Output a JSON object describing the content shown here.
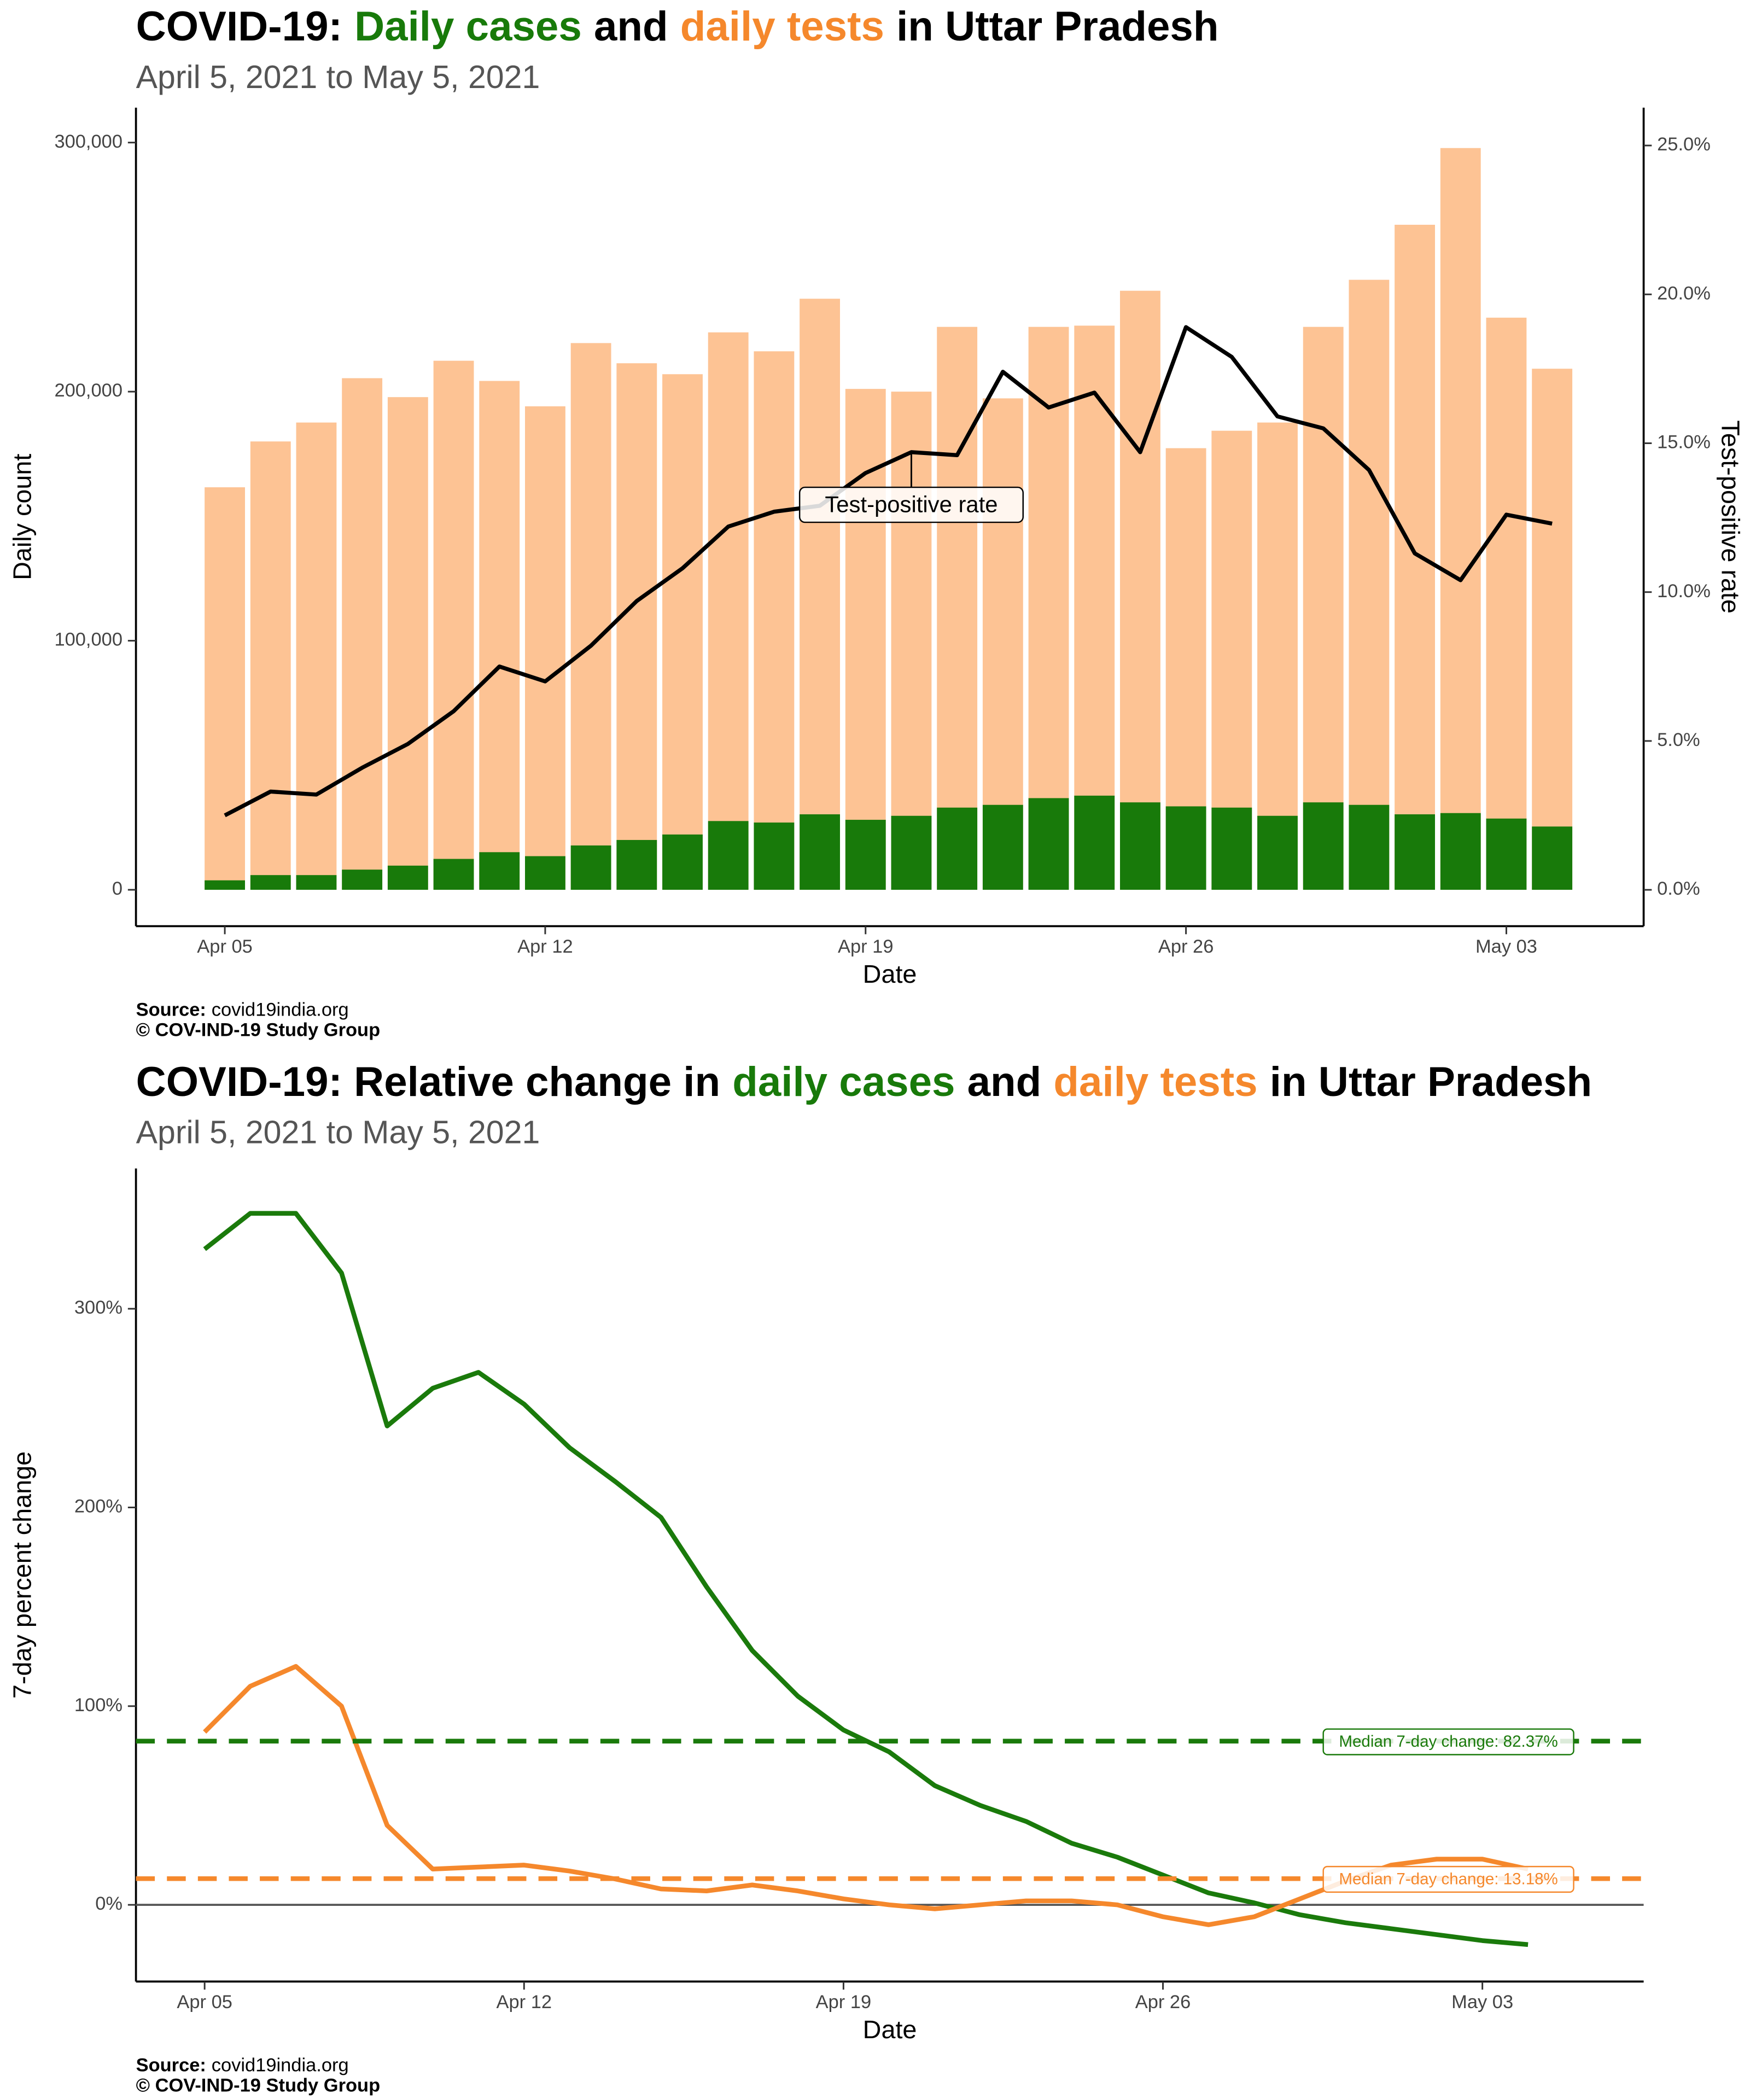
{
  "chart_data": [
    {
      "type": "bar",
      "title": [
        "COVID-19:",
        "Daily cases",
        "and",
        "daily tests",
        "in Uttar Pradesh"
      ],
      "title_colors": [
        "#000000",
        "#187a0a",
        "#000000",
        "#f5882c",
        "#000000"
      ],
      "subtitle": "April  5, 2021 to May  5, 2021",
      "x_label": "Date",
      "y_label": "Daily count",
      "y2_label": "Test-positive rate",
      "annotation": "Test-positive rate",
      "source_label": "Source:",
      "source": "covid19india.org",
      "copyright": "© COV-IND-19 Study Group",
      "categories": [
        "Apr 05",
        null,
        null,
        null,
        null,
        null,
        null,
        "Apr 12",
        null,
        null,
        null,
        null,
        null,
        null,
        "Apr 19",
        null,
        null,
        null,
        null,
        null,
        null,
        "Apr 26",
        null,
        null,
        null,
        null,
        null,
        null,
        "May 03",
        null
      ],
      "series": [
        {
          "name": "daily tests",
          "type": "bar",
          "color": "#fdc394",
          "values": [
            161600,
            180000,
            187600,
            205400,
            197800,
            212400,
            204300,
            194100,
            219500,
            211400,
            207000,
            223800,
            216200,
            237300,
            201100,
            200000,
            226000,
            197300,
            226000,
            226500,
            240500,
            177300,
            184300,
            187600,
            226000,
            244900,
            267000,
            297800,
            229700,
            209200
          ]
        },
        {
          "name": "Daily cases",
          "type": "bar",
          "color": "#187a0a",
          "values": [
            3800,
            5900,
            5900,
            8100,
            9700,
            12400,
            15100,
            13500,
            17800,
            20000,
            22200,
            27600,
            27000,
            30300,
            28100,
            29700,
            33000,
            34100,
            36800,
            37800,
            35100,
            33500,
            33000,
            29700,
            35100,
            34100,
            30300,
            30800,
            28600,
            25400
          ]
        },
        {
          "name": "Test-positive rate",
          "type": "line",
          "axis": "y2",
          "color": "#000000",
          "values": [
            2.5,
            3.3,
            3.2,
            4.1,
            4.9,
            6.0,
            7.5,
            7.0,
            8.2,
            9.7,
            10.8,
            12.2,
            12.7,
            12.9,
            14.0,
            14.7,
            14.6,
            17.4,
            16.2,
            16.7,
            14.7,
            18.9,
            17.9,
            15.9,
            15.5,
            14.1,
            11.3,
            10.4,
            12.6,
            12.3
          ]
        }
      ],
      "ylim": [
        -14600,
        314000
      ],
      "yticks": [
        0,
        {
          "value": 100000,
          "label": "100,000"
        },
        {
          "value": 200000,
          "label": "200,000"
        },
        {
          "value": 300000,
          "label": "300,000"
        }
      ],
      "y2lim": [
        -1.22,
        26.27
      ],
      "y2ticks": [
        {
          "value": 0,
          "label": "0.0%"
        },
        {
          "value": 5,
          "label": "5.0%"
        },
        {
          "value": 10,
          "label": "10.0%"
        },
        {
          "value": 15,
          "label": "15.0%"
        },
        {
          "value": 20,
          "label": "20.0%"
        },
        {
          "value": 25,
          "label": "25.0%"
        }
      ],
      "grid": false
    },
    {
      "type": "line",
      "title": [
        "COVID-19: Relative change in",
        "daily cases",
        "and",
        "daily tests",
        "in Uttar Pradesh"
      ],
      "title_colors": [
        "#000000",
        "#187a0a",
        "#000000",
        "#f5882c",
        "#000000"
      ],
      "subtitle": "April  5, 2021 to May  5, 2021",
      "x_label": "Date",
      "y_label": "7-day percent change",
      "source_label": "Source:",
      "source": "covid19india.org",
      "copyright": "© COV-IND-19 Study Group",
      "categories": [
        "Apr 05",
        null,
        null,
        null,
        null,
        null,
        null,
        "Apr 12",
        null,
        null,
        null,
        null,
        null,
        null,
        "Apr 19",
        null,
        null,
        null,
        null,
        null,
        null,
        "Apr 26",
        null,
        null,
        null,
        null,
        null,
        null,
        "May 03",
        null
      ],
      "series": [
        {
          "name": "daily cases",
          "color": "#1a7a0b",
          "values": [
            330,
            348,
            348,
            318,
            241,
            260,
            268,
            252,
            230,
            213,
            195,
            160,
            128,
            105,
            88,
            77,
            60,
            50,
            42,
            31,
            24,
            15,
            6,
            1,
            -5,
            -9,
            -12,
            -15,
            -18,
            -20
          ]
        },
        {
          "name": "daily tests",
          "color": "#f5882c",
          "values": [
            87,
            110,
            120,
            100,
            40,
            18,
            19,
            20,
            17,
            13,
            8,
            7,
            10,
            7,
            3,
            0,
            -2,
            0,
            2,
            2,
            0,
            -6,
            -10,
            -6,
            3,
            12,
            20,
            23,
            23,
            18
          ]
        }
      ],
      "hlines": [
        {
          "value": 82.37,
          "label": "Median 7-day change: 82.37%",
          "color": "#1a7a0b"
        },
        {
          "value": 13.18,
          "label": "Median 7-day change: 13.18%",
          "color": "#f5882c"
        }
      ],
      "zero_line": true,
      "ylim": [
        -38.6,
        370.6
      ],
      "yticks": [
        {
          "value": 0,
          "label": "0%"
        },
        {
          "value": 100,
          "label": "100%"
        },
        {
          "value": 200,
          "label": "200%"
        },
        {
          "value": 300,
          "label": "300%"
        }
      ],
      "grid": false
    }
  ]
}
